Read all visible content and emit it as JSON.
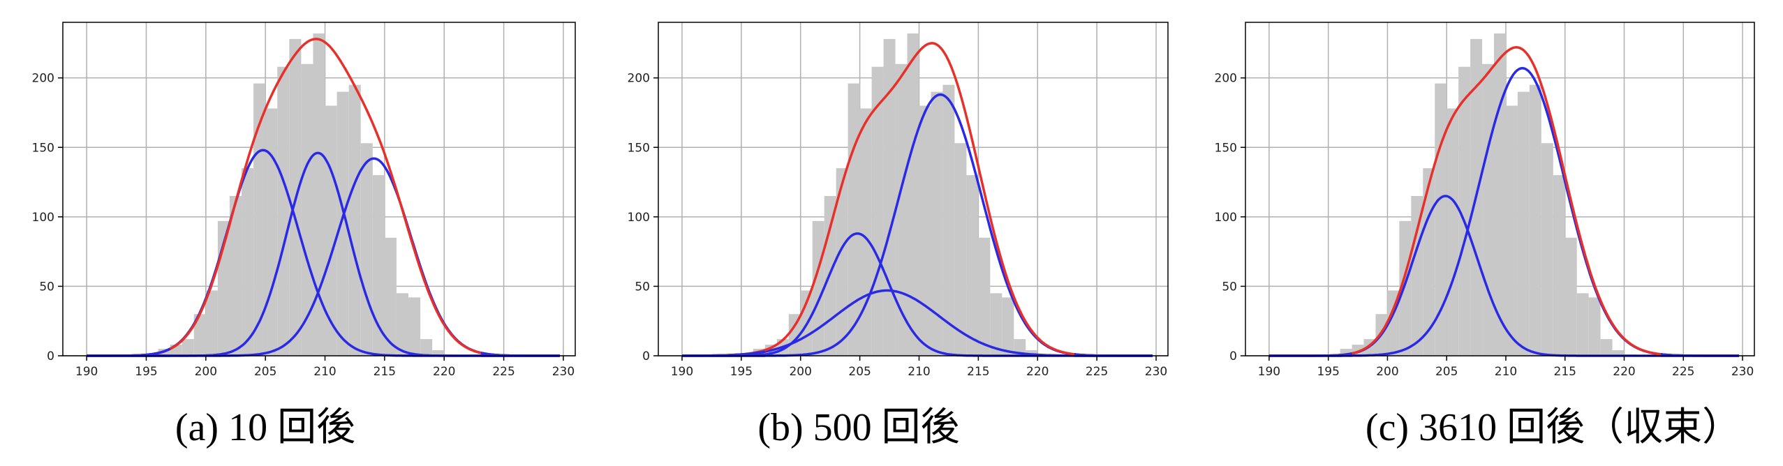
{
  "colors": {
    "histogram": "#c8c8c8",
    "component": "#2a2ae6",
    "mixture": "#e8302a",
    "grid": "#b0b0b0",
    "axis": "#000000"
  },
  "chart_data": [
    {
      "type": "bar",
      "caption": "(a) 10 回後",
      "xlim": [
        188,
        231
      ],
      "ylim": [
        0,
        240
      ],
      "xticks": [
        190,
        195,
        200,
        205,
        210,
        215,
        220,
        225,
        230
      ],
      "yticks": [
        0,
        50,
        100,
        150,
        200
      ],
      "grid": true,
      "histogram": {
        "bin_start": 196,
        "bin_width": 1,
        "counts": [
          5,
          8,
          12,
          30,
          47,
          97,
          115,
          135,
          196,
          178,
          208,
          228,
          210,
          232,
          180,
          190,
          195,
          153,
          130,
          85,
          45,
          42,
          12,
          4,
          1
        ]
      },
      "components": [
        {
          "mean": 204.8,
          "sd": 3.0,
          "peak": 148
        },
        {
          "mean": 209.4,
          "sd": 2.6,
          "peak": 146
        },
        {
          "mean": 214.1,
          "sd": 3.1,
          "peak": 142
        }
      ],
      "mixture_peak": 228
    },
    {
      "type": "bar",
      "caption": "(b) 500 回後",
      "xlim": [
        188,
        231
      ],
      "ylim": [
        0,
        240
      ],
      "xticks": [
        190,
        195,
        200,
        205,
        210,
        215,
        220,
        225,
        230
      ],
      "yticks": [
        0,
        50,
        100,
        150,
        200
      ],
      "grid": true,
      "histogram": {
        "bin_start": 196,
        "bin_width": 1,
        "counts": [
          5,
          8,
          12,
          30,
          47,
          97,
          115,
          135,
          196,
          178,
          208,
          228,
          210,
          232,
          180,
          190,
          195,
          153,
          130,
          85,
          45,
          42,
          12,
          4,
          1
        ]
      },
      "components": [
        {
          "mean": 204.8,
          "sd": 2.6,
          "peak": 88
        },
        {
          "mean": 207.3,
          "sd": 4.4,
          "peak": 47
        },
        {
          "mean": 211.8,
          "sd": 3.5,
          "peak": 188
        }
      ],
      "mixture_peak": 225
    },
    {
      "type": "bar",
      "caption": "(c) 3610 回後（収束）",
      "xlim": [
        188,
        231
      ],
      "ylim": [
        0,
        240
      ],
      "xticks": [
        190,
        195,
        200,
        205,
        210,
        215,
        220,
        225,
        230
      ],
      "yticks": [
        0,
        50,
        100,
        150,
        200
      ],
      "grid": true,
      "histogram": {
        "bin_start": 196,
        "bin_width": 1,
        "counts": [
          5,
          8,
          12,
          30,
          47,
          97,
          115,
          135,
          196,
          178,
          208,
          228,
          210,
          232,
          180,
          190,
          195,
          153,
          130,
          85,
          45,
          42,
          12,
          4,
          1
        ]
      },
      "components": [
        {
          "mean": 204.9,
          "sd": 2.7,
          "peak": 115
        },
        {
          "mean": 211.4,
          "sd": 3.6,
          "peak": 207
        }
      ],
      "mixture_peak": 222
    }
  ]
}
